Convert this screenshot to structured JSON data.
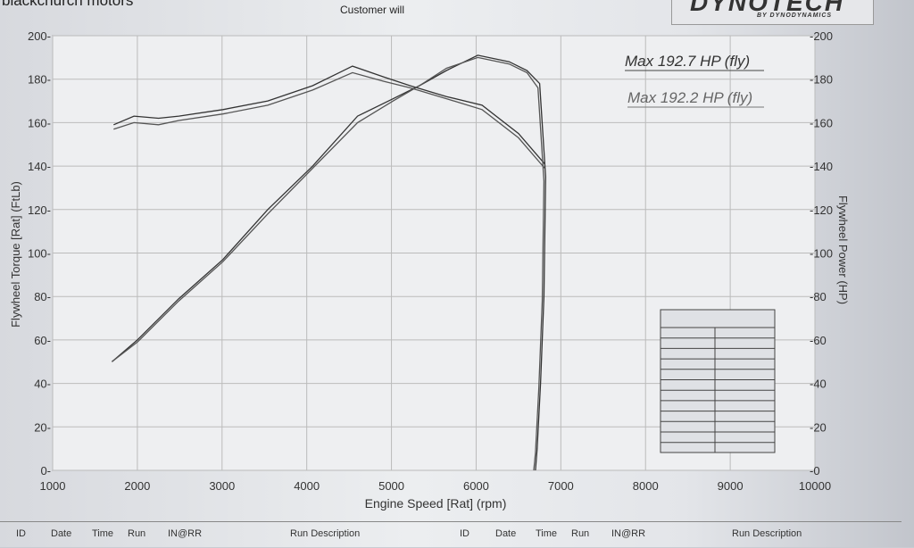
{
  "header": {
    "company": "blackchurch motors",
    "customer": "Customer will",
    "logo_text": "DYNOTECH",
    "logo_sub": "BY DYNODYNAMICS"
  },
  "annotations": {
    "max1": "Max 192.7 HP (fly)",
    "max2": "Max 192.2 HP (fly)"
  },
  "footer": {
    "left": [
      "ID",
      "Date",
      "Time",
      "Run",
      "IN@RR",
      "Run Description"
    ],
    "right": [
      "ID",
      "Date",
      "Time",
      "Run",
      "IN@RR",
      "Run Description"
    ]
  },
  "chart_data": {
    "type": "line",
    "xlabel": "Engine Speed [Rat] (rpm)",
    "ylabel": "Flywheel Torque [Rat] (FtLb)",
    "y2label": "Flywheel Power (HP)",
    "xlim": [
      1000,
      10000
    ],
    "ylim": [
      0,
      200
    ],
    "y2lim": [
      0,
      200
    ],
    "xticks": [
      1000,
      2000,
      3000,
      4000,
      5000,
      6000,
      7000,
      8000,
      9000,
      10000
    ],
    "yticks": [
      0,
      20,
      40,
      60,
      80,
      100,
      120,
      140,
      160,
      180,
      200
    ],
    "grid": true,
    "series": [
      {
        "axis": "left",
        "x": [
          1720,
          1960,
          2250,
          2490,
          3010,
          3540,
          4070,
          4540,
          4910,
          5220,
          5650,
          6070,
          6500,
          6810
        ],
        "y": [
          159,
          163,
          162,
          163,
          166,
          170,
          177,
          186,
          181,
          177,
          172,
          168,
          155,
          141
        ]
      },
      {
        "axis": "left",
        "x": [
          1720,
          1960,
          2250,
          2490,
          3010,
          3540,
          4070,
          4540,
          4910,
          5220,
          5650,
          6070,
          6500,
          6810
        ],
        "y": [
          157,
          160,
          159,
          161,
          164,
          168,
          175,
          183,
          179,
          176,
          171,
          166,
          153,
          139
        ]
      },
      {
        "axis": "right",
        "x": [
          1700,
          2000,
          2490,
          3010,
          3540,
          4070,
          4600,
          5020,
          5330,
          5650,
          6020,
          6390,
          6600,
          6750,
          6820,
          6800,
          6760,
          6720,
          6700
        ],
        "y": [
          50,
          60,
          79,
          97,
          120,
          140,
          163,
          171,
          177,
          184,
          191,
          188,
          184,
          178,
          135,
          80,
          40,
          10,
          0
        ]
      },
      {
        "axis": "right",
        "x": [
          1700,
          2000,
          2490,
          3010,
          3540,
          4070,
          4600,
          5020,
          5330,
          5650,
          6020,
          6390,
          6600,
          6730,
          6800,
          6780,
          6740,
          6700,
          6680
        ],
        "y": [
          50,
          59,
          78,
          96,
          118,
          139,
          160,
          170,
          177,
          185,
          190,
          187,
          183,
          176,
          133,
          78,
          38,
          8,
          0
        ]
      }
    ]
  }
}
